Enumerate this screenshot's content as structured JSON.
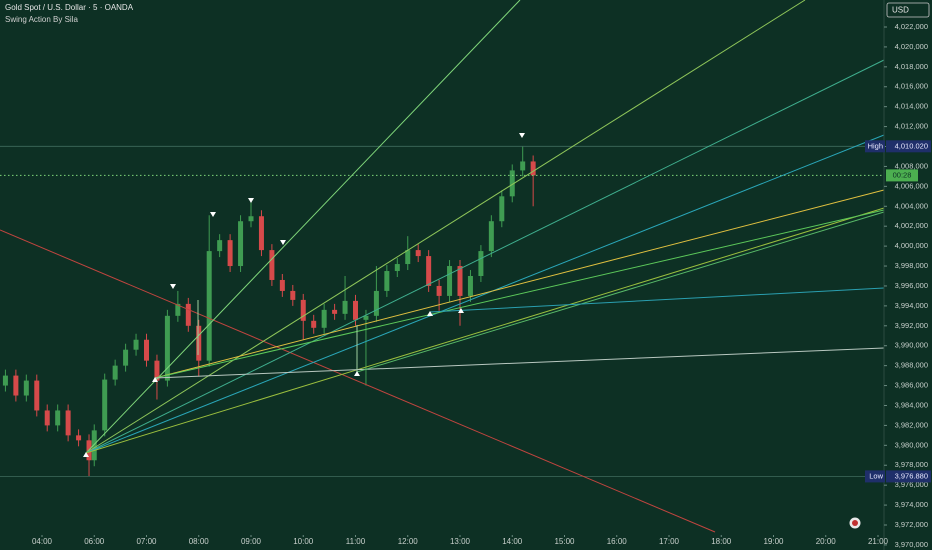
{
  "chart_data": {
    "type": "candlestick",
    "title": "Gold Spot / U.S. Dollar · 5 · OANDA",
    "subtitle": "Swing Action By Sila",
    "currency": "USD",
    "up_color": "#3f9c52",
    "down_color": "#d64a4a",
    "x": [
      2.6,
      3.0,
      3.4,
      3.8,
      4.2,
      4.6,
      5.0,
      5.4,
      5.8,
      6.0,
      6.2,
      6.4,
      6.6,
      6.8,
      7.0,
      7.2,
      7.4,
      7.6,
      7.8,
      8.0,
      8.2,
      8.4,
      8.6,
      8.8,
      9.0,
      9.2,
      9.4,
      9.6,
      9.8,
      10.0,
      10.2,
      10.4,
      10.6,
      10.8,
      11.0,
      11.2,
      11.4,
      11.6,
      11.8,
      12.0,
      12.2,
      12.4,
      12.6,
      12.8,
      13.0,
      13.2,
      13.4,
      13.6,
      13.8,
      14.0,
      14.2,
      14.4
    ],
    "open": [
      3986.0,
      3987.0,
      3985.0,
      3986.5,
      3983.5,
      3982.0,
      3983.5,
      3981.0,
      3980.5,
      3978.5,
      3981.5,
      3986.6,
      3988.0,
      3989.6,
      3990.6,
      3988.5,
      3986.5,
      3993.0,
      3994.2,
      3992.0,
      3988.5,
      3999.5,
      4000.6,
      3998.0,
      4002.5,
      4003.0,
      3999.6,
      3996.6,
      3995.5,
      3994.6,
      3992.5,
      3991.8,
      3993.6,
      3993.2,
      3994.5,
      3992.6,
      3993.0,
      3995.5,
      3997.5,
      3998.2,
      3999.6,
      3999.0,
      3996.0,
      3995.0,
      3998.0,
      3995.0,
      3997.0,
      3999.5,
      4002.5,
      4005.0,
      4007.6,
      4008.5
    ],
    "high": [
      3987.6,
      3987.6,
      3987.1,
      3987.1,
      3984.1,
      3984.1,
      3984.1,
      3981.6,
      3981.1,
      3982.1,
      3987.2,
      3988.6,
      3990.2,
      3991.2,
      3991.2,
      3989.1,
      3993.6,
      3995.5,
      3994.8,
      3992.6,
      4003.1,
      4001.2,
      4001.2,
      4003.1,
      4004.6,
      4003.6,
      4000.2,
      3997.2,
      3996.1,
      3995.2,
      3993.1,
      3994.2,
      3994.2,
      3997.0,
      3995.1,
      3993.6,
      3998.0,
      3998.1,
      3998.8,
      4001.0,
      4000.2,
      3999.6,
      3996.6,
      3998.6,
      3998.6,
      3997.6,
      4000.1,
      4003.1,
      4005.6,
      4008.2,
      4010.0,
      4009.1
    ],
    "low": [
      3985.4,
      3984.4,
      3984.4,
      3982.9,
      3981.4,
      3981.4,
      3980.4,
      3979.9,
      3976.9,
      3977.9,
      3980.9,
      3986.0,
      3987.4,
      3989.0,
      3987.9,
      3984.6,
      3985.9,
      3992.4,
      3991.4,
      3986.9,
      3987.9,
      3998.9,
      3997.4,
      3997.4,
      4001.9,
      3999.0,
      3996.0,
      3994.9,
      3994.0,
      3990.6,
      3991.2,
      3991.2,
      3992.6,
      3992.6,
      3992.0,
      3986.0,
      3992.4,
      3994.9,
      3996.9,
      3997.6,
      3998.4,
      3995.4,
      3993.5,
      3994.4,
      3992.0,
      3994.4,
      3996.4,
      3998.9,
      4001.9,
      4004.4,
      4007.0,
      4004.0
    ],
    "close": [
      3987.0,
      3985.0,
      3986.5,
      3983.5,
      3982.0,
      3983.5,
      3981.0,
      3980.5,
      3978.5,
      3981.5,
      3986.6,
      3988.0,
      3989.6,
      3990.6,
      3988.5,
      3986.5,
      3993.0,
      3994.2,
      3992.0,
      3988.5,
      3999.5,
      4000.6,
      3998.0,
      4002.5,
      4003.0,
      3999.6,
      3996.6,
      3995.5,
      3994.6,
      3992.5,
      3991.8,
      3993.6,
      3993.2,
      3994.5,
      3992.6,
      3993.0,
      3995.5,
      3997.5,
      3998.2,
      3999.6,
      3999.0,
      3996.0,
      3995.0,
      3998.0,
      3995.0,
      3997.0,
      3999.5,
      4002.5,
      4005.0,
      4007.6,
      4008.5,
      4007.1
    ],
    "xlim": [
      2.39,
      21.11
    ],
    "xticks": [
      {
        "value": 4,
        "label": "04:00"
      },
      {
        "value": 6,
        "label": "06:00"
      },
      {
        "value": 7,
        "label": "07:00"
      },
      {
        "value": 8,
        "label": "08:00"
      },
      {
        "value": 9,
        "label": "09:00"
      },
      {
        "value": 10,
        "label": "10:00"
      },
      {
        "value": 11,
        "label": "11:00"
      },
      {
        "value": 12,
        "label": "12:00"
      },
      {
        "value": 13,
        "label": "13:00"
      },
      {
        "value": 14,
        "label": "14:00"
      },
      {
        "value": 15,
        "label": "15:00"
      },
      {
        "value": 16,
        "label": "16:00"
      },
      {
        "value": 17,
        "label": "17:00"
      },
      {
        "value": 18,
        "label": "18:00"
      },
      {
        "value": 19,
        "label": "19:00"
      },
      {
        "value": 20,
        "label": "20:00"
      },
      {
        "value": 21,
        "label": "21:00"
      }
    ],
    "ylim": [
      3969.49,
      4024.71
    ],
    "yticks": [
      {
        "value": 3970,
        "label": "3,970,000"
      },
      {
        "value": 3972,
        "label": "3,972,000"
      },
      {
        "value": 3974,
        "label": "3,974,000"
      },
      {
        "value": 3976,
        "label": "3,976,000"
      },
      {
        "value": 3978,
        "label": "3,978,000"
      },
      {
        "value": 3980,
        "label": "3,980,000"
      },
      {
        "value": 3982,
        "label": "3,982,000"
      },
      {
        "value": 3984,
        "label": "3,984,000"
      },
      {
        "value": 3986,
        "label": "3,986,000"
      },
      {
        "value": 3988,
        "label": "3,988,000"
      },
      {
        "value": 3990,
        "label": "3,990,000"
      },
      {
        "value": 3992,
        "label": "3,992,000"
      },
      {
        "value": 3994,
        "label": "3,994,000"
      },
      {
        "value": 3996,
        "label": "3,996,000"
      },
      {
        "value": 3998,
        "label": "3,998,000"
      },
      {
        "value": 4000,
        "label": "4,000,000"
      },
      {
        "value": 4002,
        "label": "4,002,000"
      },
      {
        "value": 4004,
        "label": "4,004,000"
      },
      {
        "value": 4006,
        "label": "4,006,000"
      },
      {
        "value": 4008,
        "label": "4,008,000"
      },
      {
        "value": 4010,
        "label": "4,010,000"
      },
      {
        "value": 4012,
        "label": "4,012,000"
      },
      {
        "value": 4014,
        "label": "4,014,000"
      },
      {
        "value": 4016,
        "label": "4,016,000"
      },
      {
        "value": 4018,
        "label": "4,018,000"
      },
      {
        "value": 4020,
        "label": "4,020,000"
      },
      {
        "value": 4022,
        "label": "4,022,000"
      }
    ],
    "high_line": {
      "label": "High",
      "value": 4010.02,
      "value_label": "4,010.020"
    },
    "low_line": {
      "label": "Low",
      "value": 3976.88,
      "value_label": "3,976.880"
    },
    "countdown": "00:28"
  }
}
